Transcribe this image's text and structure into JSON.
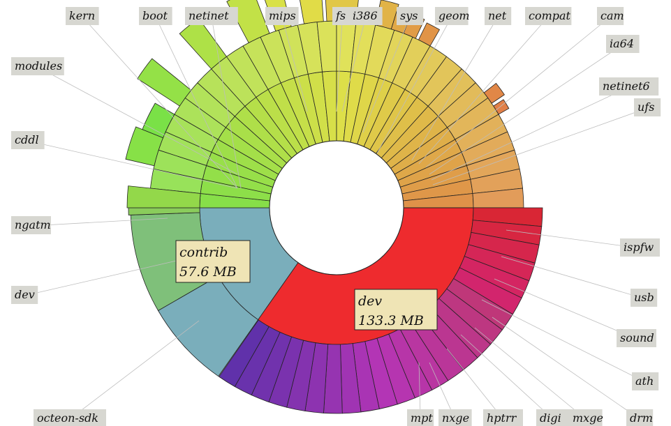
{
  "chart_data": {
    "type": "sunburst",
    "ring_colors_note": "hue runs red (dev) -> blue (contrib) -> green -> yellow -> orange",
    "root_children": [
      {
        "name": "dev",
        "size_label": "133.3 MB",
        "color": "#ee2b2e"
      },
      {
        "name": "contrib",
        "size_label": "57.6 MB",
        "color": "#7aaebb"
      }
    ],
    "outer_labels": [
      "kern",
      "boot",
      "netinet",
      "mips",
      "fs",
      "i386",
      "sys",
      "geom",
      "net",
      "compat",
      "cam",
      "ia64",
      "modules",
      "netinet6",
      "ufs",
      "cddl",
      "ngatm",
      "ispfw",
      "contrib",
      "dev",
      "usb",
      "sound",
      "ath",
      "octeon-sdk",
      "mpt",
      "nxge",
      "hptrr",
      "digi",
      "mxge",
      "drm"
    ]
  },
  "callouts": {
    "contrib": {
      "name": "contrib",
      "size": "57.6 MB"
    },
    "dev": {
      "name": "dev",
      "size": "133.3 MB"
    }
  },
  "labels": {
    "kern": "kern",
    "boot": "boot",
    "netinet": "netinet",
    "mips": "mips",
    "fs": "fs",
    "i386": "i386",
    "sys": "sys",
    "geom": "geom",
    "net": "net",
    "compat": "compat",
    "cam": "cam",
    "ia64": "ia64",
    "modules": "modules",
    "netinet6": "netinet6",
    "ufs": "ufs",
    "cddl": "cddl",
    "ngatm": "ngatm",
    "ispfw": "ispfw",
    "dev_left": "dev",
    "usb": "usb",
    "sound": "sound",
    "ath": "ath",
    "octeon": "octeon-sdk",
    "mpt": "mpt",
    "nxge": "nxge",
    "hptrr": "hptrr",
    "digi": "digi",
    "mxge": "mxge",
    "drm": "drm"
  }
}
